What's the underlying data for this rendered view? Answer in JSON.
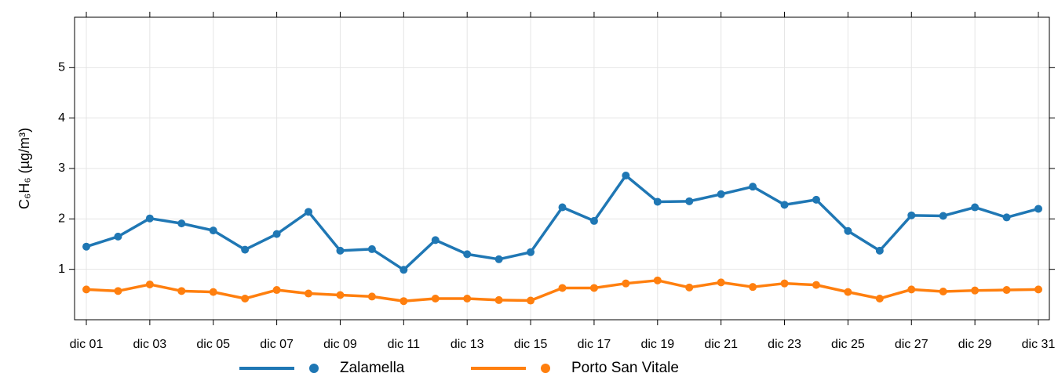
{
  "chart_data": {
    "type": "line",
    "ylabel": "C₆H₆ (µg/m³)",
    "categories": [
      "dic 01",
      null,
      "dic 03",
      null,
      "dic 05",
      null,
      "dic 07",
      null,
      "dic 09",
      null,
      "dic 11",
      null,
      "dic 13",
      null,
      "dic 15",
      null,
      "dic 17",
      null,
      "dic 19",
      null,
      "dic 21",
      null,
      "dic 23",
      null,
      "dic 25",
      null,
      "dic 27",
      null,
      "dic 29",
      null,
      "dic 31"
    ],
    "series": [
      {
        "name": "Zalamella",
        "color": "#1f77b4",
        "values": [
          1.45,
          1.65,
          2.01,
          1.91,
          1.77,
          1.39,
          1.7,
          2.14,
          1.37,
          1.4,
          0.99,
          1.58,
          1.3,
          1.2,
          1.34,
          2.23,
          1.96,
          2.86,
          2.34,
          2.35,
          2.49,
          2.64,
          2.28,
          2.38,
          1.76,
          1.37,
          2.07,
          2.06,
          2.23,
          2.03,
          2.2
        ]
      },
      {
        "name": "Porto San Vitale",
        "color": "#ff7f0e",
        "values": [
          0.6,
          0.57,
          0.7,
          0.57,
          0.55,
          0.42,
          0.59,
          0.52,
          0.49,
          0.46,
          0.37,
          0.42,
          0.42,
          0.39,
          0.38,
          0.63,
          0.63,
          0.72,
          0.78,
          0.64,
          0.74,
          0.65,
          0.72,
          0.69,
          0.55,
          0.42,
          0.6,
          0.56,
          0.58,
          0.59,
          0.6
        ]
      }
    ],
    "ylim": [
      0,
      6
    ],
    "yticks": [
      1,
      2,
      3,
      4,
      5
    ],
    "grid": true,
    "legend": "bottom"
  }
}
